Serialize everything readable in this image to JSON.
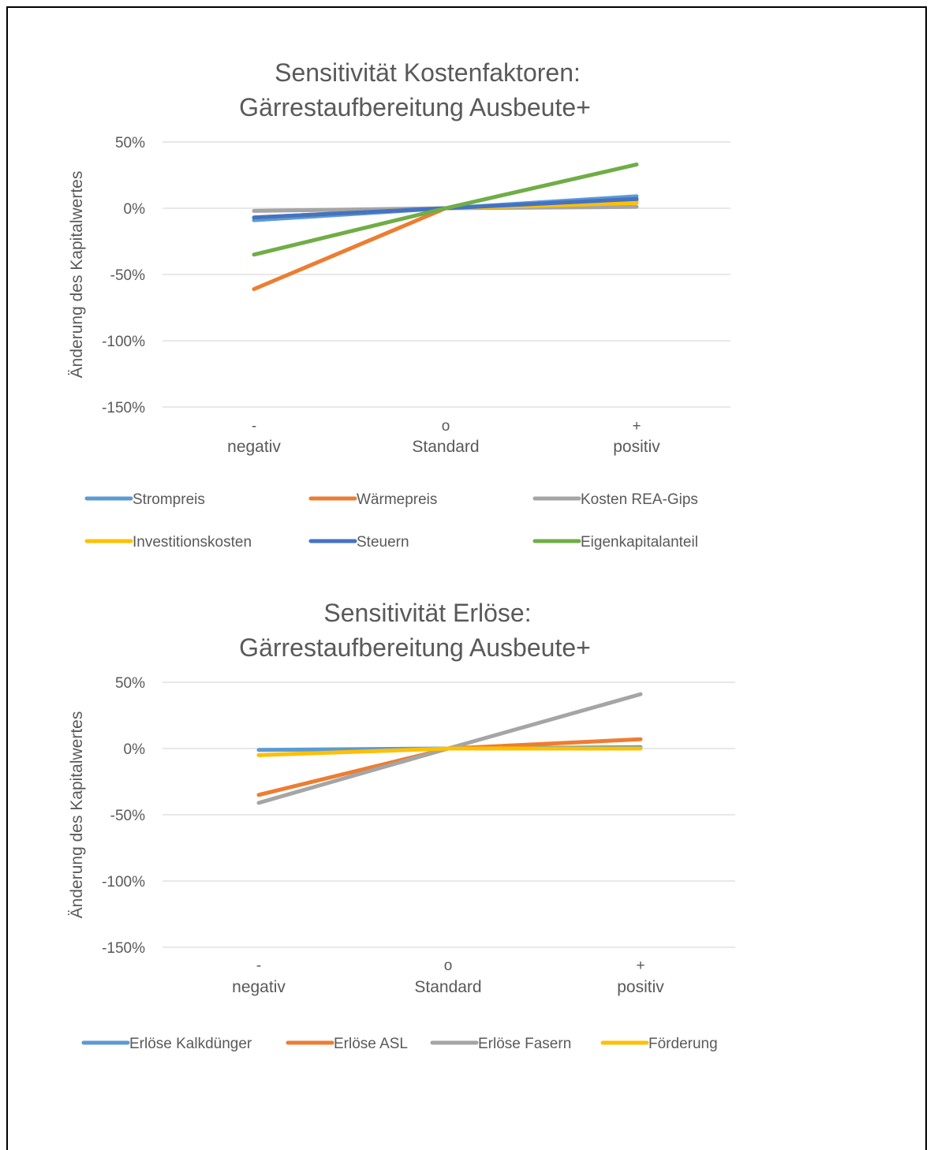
{
  "chart_data": [
    {
      "type": "line",
      "title_line1": "Sensitivität Kostenfaktoren:",
      "title_line2": "Gärrestaufbereitung Ausbeute+",
      "ylabel": "Änderung des Kapitalwertes",
      "yticks": [
        "50%",
        "0%",
        "-50%",
        "-100%",
        "-150%"
      ],
      "ylim": [
        -150,
        50
      ],
      "categories": [
        {
          "symbol": "-",
          "label": "negativ"
        },
        {
          "symbol": "o",
          "label": "Standard"
        },
        {
          "symbol": "+",
          "label": "positiv"
        }
      ],
      "series": [
        {
          "name": "Strompreis",
          "color": "#5B9BD5",
          "values": [
            -9,
            0,
            9
          ]
        },
        {
          "name": "Wärmepreis",
          "color": "#ED7D31",
          "values": [
            -61,
            0,
            6
          ]
        },
        {
          "name": "Kosten REA-Gips",
          "color": "#A5A5A5",
          "values": [
            -2,
            0,
            1
          ]
        },
        {
          "name": "Investitionskosten",
          "color": "#FFC000",
          "values": [
            -7,
            0,
            4
          ]
        },
        {
          "name": "Steuern",
          "color": "#4472C4",
          "values": [
            -7,
            0,
            7
          ]
        },
        {
          "name": "Eigenkapitalanteil",
          "color": "#70AD47",
          "values": [
            -35,
            0,
            33
          ]
        }
      ],
      "legend_position": "bottom",
      "grid": true
    },
    {
      "type": "line",
      "title_line1": "Sensitivität Erlöse:",
      "title_line2": "Gärrestaufbereitung Ausbeute+",
      "ylabel": "Änderung des Kapitalwertes",
      "yticks": [
        "50%",
        "0%",
        "-50%",
        "-100%",
        "-150%"
      ],
      "ylim": [
        -150,
        50
      ],
      "categories": [
        {
          "symbol": "-",
          "label": "negativ"
        },
        {
          "symbol": "o",
          "label": "Standard"
        },
        {
          "symbol": "+",
          "label": "positiv"
        }
      ],
      "series": [
        {
          "name": "Erlöse Kalkdünger",
          "color": "#5B9BD5",
          "values": [
            -1,
            0,
            1
          ]
        },
        {
          "name": "Erlöse ASL",
          "color": "#ED7D31",
          "values": [
            -35,
            0,
            7
          ]
        },
        {
          "name": "Erlöse Fasern",
          "color": "#A5A5A5",
          "values": [
            -41,
            0,
            41
          ]
        },
        {
          "name": "Förderung",
          "color": "#FFC000",
          "values": [
            -5,
            0,
            0
          ]
        }
      ],
      "legend_position": "bottom",
      "grid": true
    }
  ]
}
